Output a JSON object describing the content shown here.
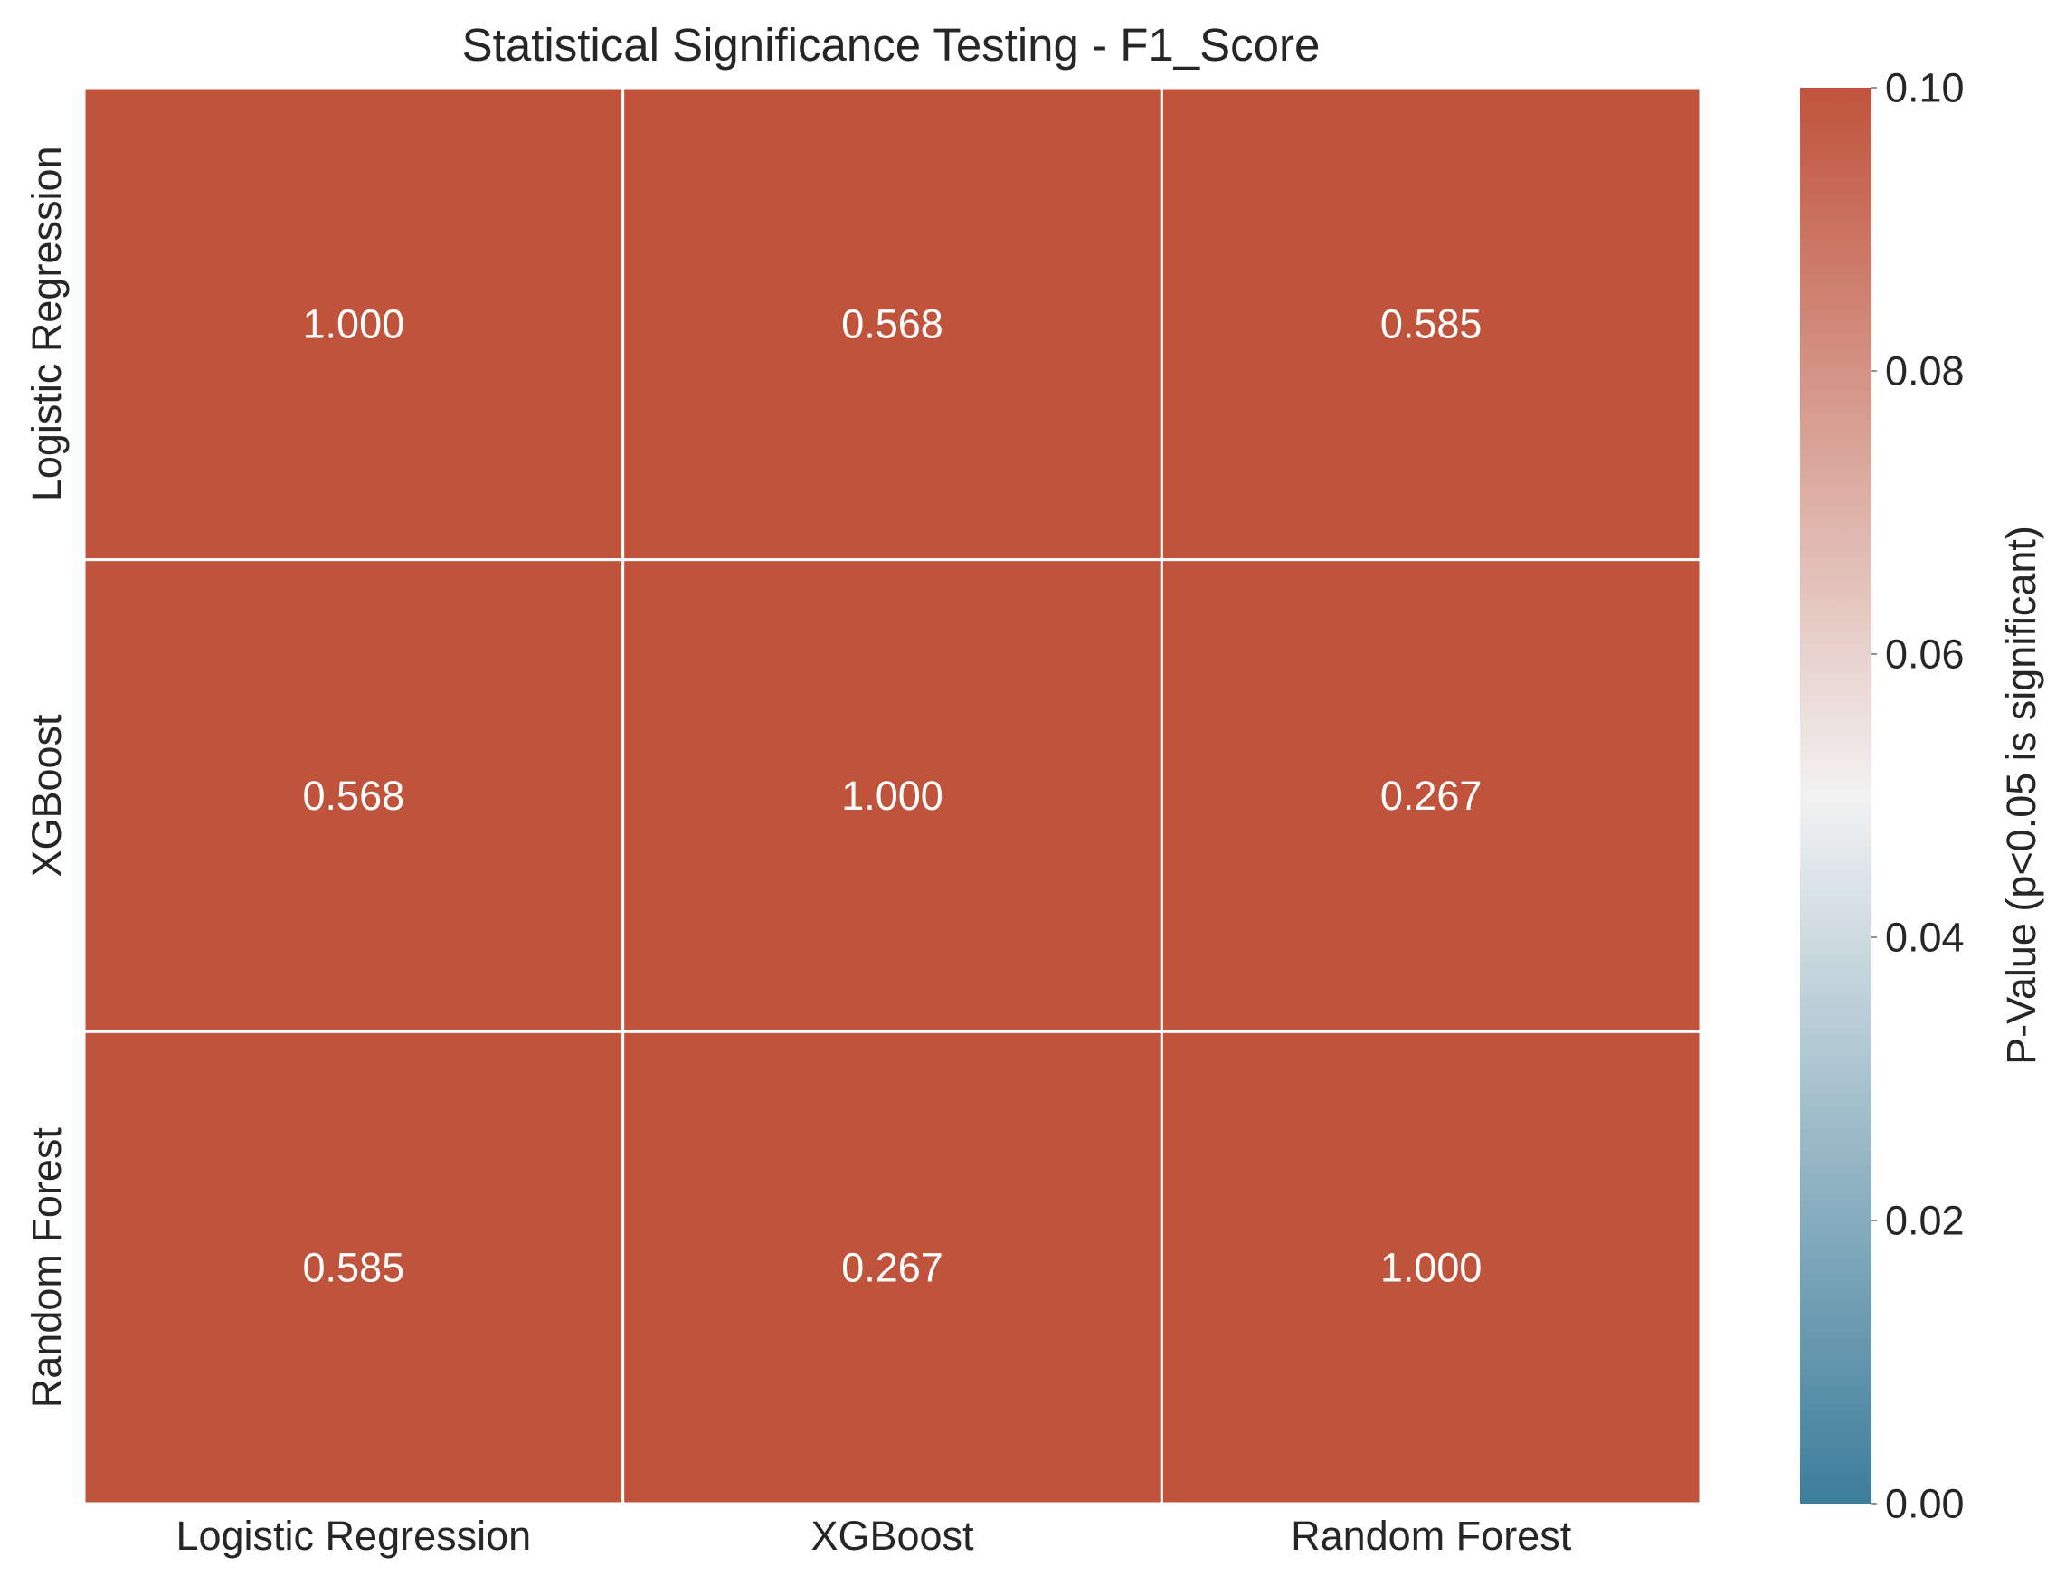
{
  "chart_data": {
    "type": "heatmap",
    "title": "Statistical Significance Testing - F1_Score",
    "rows": [
      "Logistic Regression",
      "XGBoost",
      "Random Forest"
    ],
    "columns": [
      "Logistic Regression",
      "XGBoost",
      "Random Forest"
    ],
    "values": [
      [
        1.0,
        0.568,
        0.585
      ],
      [
        0.568,
        1.0,
        0.267
      ],
      [
        0.585,
        0.267,
        1.0
      ]
    ],
    "cell_labels": [
      [
        "1.000",
        "0.568",
        "0.585"
      ],
      [
        "0.568",
        "1.000",
        "0.267"
      ],
      [
        "0.585",
        "0.267",
        "1.000"
      ]
    ],
    "colorbar": {
      "label": "P-Value (p<0.05 is significant)",
      "range": [
        0.0,
        0.1
      ],
      "ticks": [
        "0.00",
        "0.02",
        "0.04",
        "0.06",
        "0.08",
        "0.10"
      ],
      "colors": {
        "low": "#3d7e9b",
        "mid": "#f2f2f2",
        "high": "#c0533b"
      }
    }
  }
}
